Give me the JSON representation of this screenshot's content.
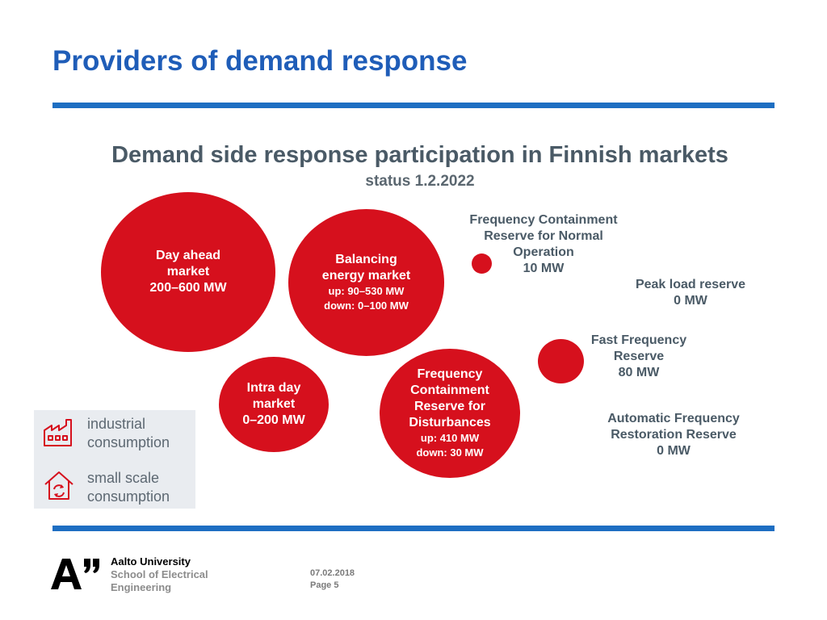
{
  "slide": {
    "title": "Providers of demand response"
  },
  "figure": {
    "title": "Demand side response participation in Finnish markets",
    "subtitle": "status 1.2.2022",
    "bubbles": {
      "day_ahead": {
        "lines": [
          "Day ahead",
          "market",
          "200–600 MW"
        ]
      },
      "balancing": {
        "lines": [
          "Balancing",
          "energy market"
        ],
        "details": [
          "up: 90–530 MW",
          "down: 0–100 MW"
        ]
      },
      "intra_day": {
        "lines": [
          "Intra day",
          "market",
          "0–200 MW"
        ]
      },
      "fcr_d": {
        "lines": [
          "Frequency",
          "Containment",
          "Reserve for",
          "Disturbances"
        ],
        "details": [
          "up: 410 MW",
          "down: 30 MW"
        ]
      }
    },
    "labels": {
      "fcr_n": [
        "Frequency Containment",
        "Reserve for Normal",
        "Operation",
        "10 MW"
      ],
      "peak_load": [
        "Peak load reserve",
        "0 MW"
      ],
      "ffr": [
        "Fast Frequency",
        "Reserve",
        "80 MW"
      ],
      "afrr": [
        "Automatic Frequency",
        "Restoration Reserve",
        "0 MW"
      ]
    },
    "legend": {
      "industrial": [
        "industrial",
        "consumption"
      ],
      "small_scale": [
        "small scale",
        "consumption"
      ]
    },
    "colors": {
      "bubble": "#d6101d",
      "accent": "#1f5db8"
    }
  },
  "footer": {
    "university": "Aalto University",
    "school_line1": "School of Electrical",
    "school_line2": "Engineering",
    "date": "07.02.2018",
    "page": "Page 5"
  }
}
